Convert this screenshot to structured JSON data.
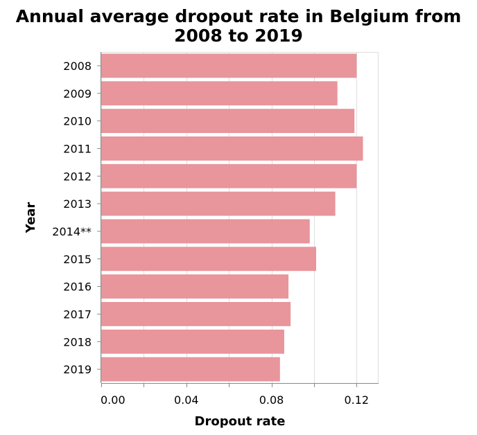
{
  "chart_data": {
    "type": "bar",
    "orientation": "horizontal",
    "title": [
      "Annual average dropout rate in Belgium from",
      "2008 to 2019"
    ],
    "xlabel": "Dropout rate",
    "ylabel": "Year",
    "categories": [
      "2008",
      "2009",
      "2010",
      "2011",
      "2012",
      "2013",
      "2014**",
      "2015",
      "2016",
      "2017",
      "2018",
      "2019"
    ],
    "values": [
      0.12,
      0.111,
      0.119,
      0.123,
      0.12,
      0.11,
      0.098,
      0.101,
      0.088,
      0.089,
      0.086,
      0.084
    ],
    "xlim": [
      0,
      0.13
    ],
    "x_ticks": [
      0,
      0.04,
      0.08,
      0.12
    ],
    "x_tick_labels": [
      "0.00",
      "0.04",
      "0.08",
      "0.12"
    ],
    "grid": true,
    "bar_color": "#e8959b"
  }
}
